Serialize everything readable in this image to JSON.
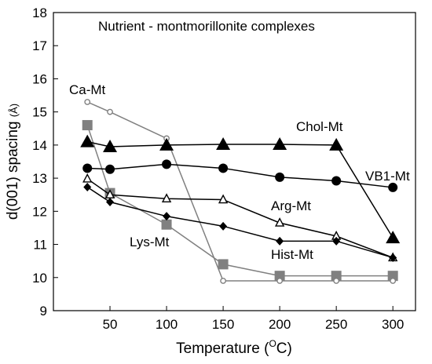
{
  "chart_data": {
    "type": "line",
    "title": "Nutrient -  montmorillonite complexes",
    "xlabel": {
      "main": "Temperature (",
      "sup": "O",
      "unit": "C)"
    },
    "ylabel": {
      "main": "d(001) spacing ",
      "unit": "(Å)"
    },
    "xlim": [
      0,
      320
    ],
    "ylim": [
      9,
      18
    ],
    "xticks": [
      50,
      100,
      150,
      200,
      250,
      300
    ],
    "yticks": [
      9,
      10,
      11,
      12,
      13,
      14,
      15,
      16,
      17,
      18
    ],
    "grid": false,
    "legend": "none (series labelled directly on the plot)",
    "series": [
      {
        "name": "Ca-Mt",
        "marker": "circle-open-small",
        "color": "#808080",
        "x": [
          30,
          50,
          100,
          150,
          200,
          250,
          300
        ],
        "y": [
          15.3,
          15.0,
          14.2,
          9.9,
          9.9,
          9.9,
          9.9
        ]
      },
      {
        "name": "Lys-Mt",
        "marker": "square",
        "color": "#808080",
        "x": [
          30,
          50,
          100,
          150,
          200,
          250,
          300
        ],
        "y": [
          14.6,
          12.55,
          11.6,
          10.4,
          10.05,
          10.05,
          10.05
        ]
      },
      {
        "name": "Chol-Mt",
        "marker": "triangle",
        "color": "#000000",
        "x": [
          30,
          50,
          100,
          150,
          200,
          250,
          300
        ],
        "y": [
          14.1,
          13.95,
          14.0,
          14.02,
          14.02,
          14.0,
          11.2
        ]
      },
      {
        "name": "VB1-Mt",
        "marker": "circle",
        "color": "#000000",
        "x": [
          30,
          50,
          100,
          150,
          200,
          250,
          300
        ],
        "y": [
          13.3,
          13.27,
          13.42,
          13.3,
          13.03,
          12.92,
          12.72
        ]
      },
      {
        "name": "Arg-Mt",
        "marker": "triangle-open",
        "color": "#000000",
        "x": [
          30,
          50,
          100,
          150,
          200,
          250,
          300
        ],
        "y": [
          12.98,
          12.5,
          12.38,
          12.35,
          11.65,
          11.25,
          10.6
        ]
      },
      {
        "name": "Hist-Mt",
        "marker": "diamond",
        "color": "#000000",
        "x": [
          30,
          50,
          100,
          150,
          200,
          250,
          300
        ],
        "y": [
          12.73,
          12.28,
          11.85,
          11.55,
          11.1,
          11.1,
          10.6
        ]
      }
    ]
  }
}
